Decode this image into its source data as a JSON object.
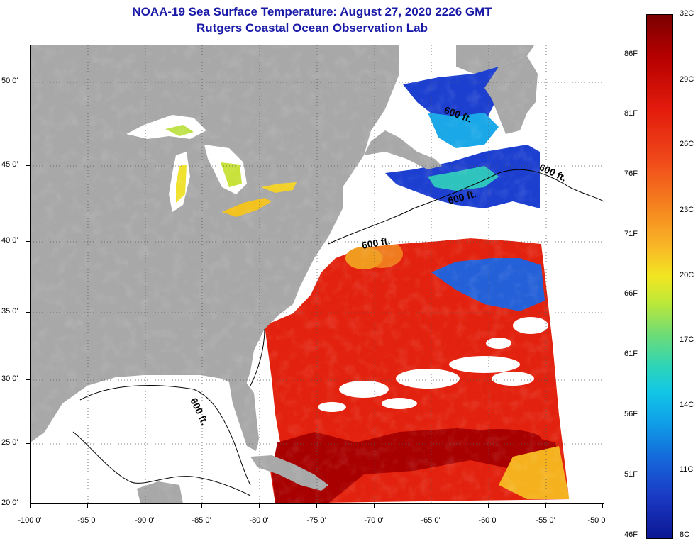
{
  "title": {
    "line1": "NOAA-19 Sea Surface Temperature:  August 27, 2020 2226 GMT",
    "line2": "Rutgers Coastal Ocean Observation Lab"
  },
  "axes": {
    "latitude_labels": [
      "50 0'",
      "45 0'",
      "40 0'",
      "35 0'",
      "30 0'",
      "25 0'",
      "20 0'"
    ],
    "longitude_labels": [
      "-100 0'",
      "-95 0'",
      "-90 0'",
      "-85 0'",
      "-80 0'",
      "-75 0'",
      "-70 0'",
      "-65 0'",
      "-60 0'",
      "-55 0'",
      "-50 0'"
    ]
  },
  "colorbar": {
    "celsius_labels": [
      "32C",
      "29C",
      "26C",
      "23C",
      "20C",
      "17C",
      "14C",
      "11C",
      "8C"
    ],
    "fahrenheit_labels": [
      "86F",
      "81F",
      "76F",
      "71F",
      "66F",
      "61F",
      "56F",
      "51F",
      "46F"
    ]
  },
  "map": {
    "depth_contour_labels": [
      "600 ft.",
      "600 ft.",
      "600 ft.",
      "600 ft.",
      "600 ft."
    ],
    "colors": {
      "land": "#a8a8a8",
      "no_data": "#ffffff",
      "warm": "#e2220e",
      "hot": "#a80000",
      "cool": "#1c3fd0",
      "mild": "#f2c21f"
    }
  }
}
